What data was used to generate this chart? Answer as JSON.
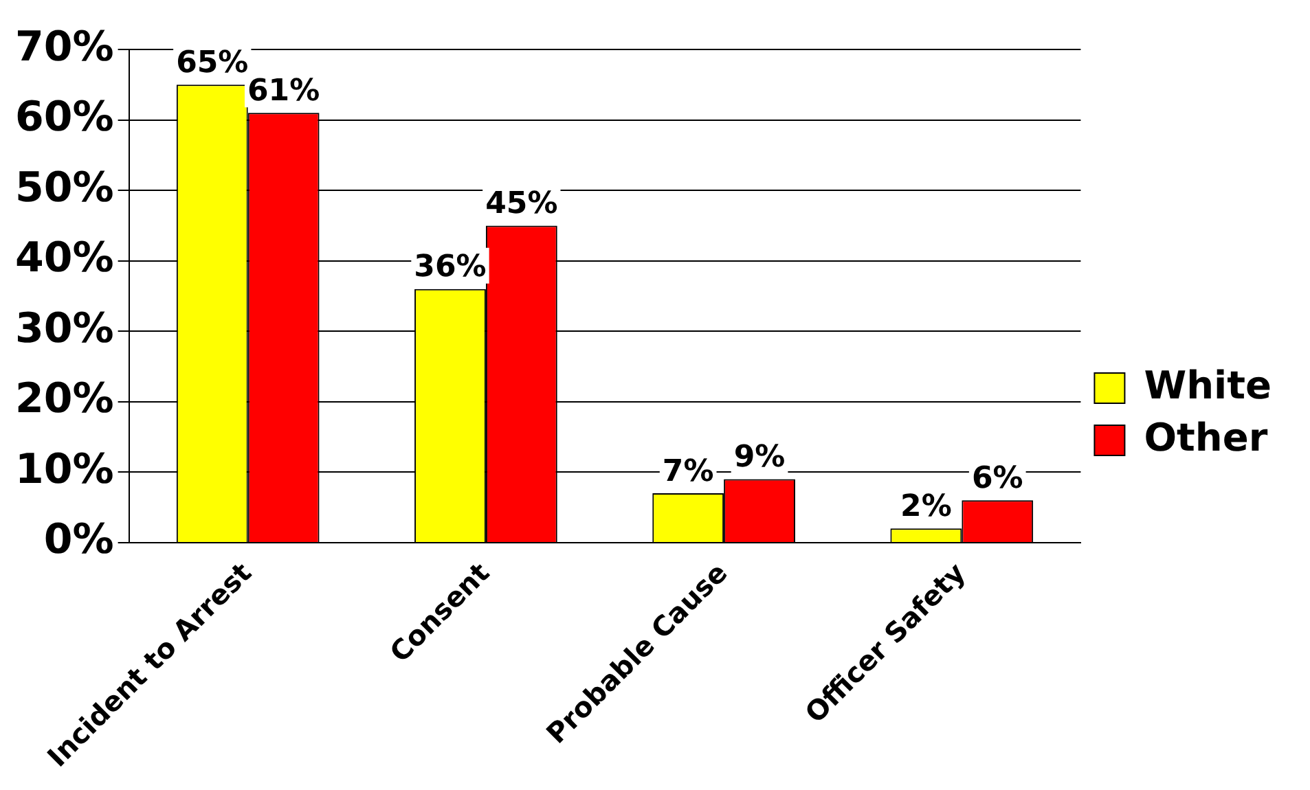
{
  "chart_data": {
    "type": "bar",
    "categories": [
      "Incident to Arrest",
      "Consent",
      "Probable Cause",
      "Officer Safety"
    ],
    "series": [
      {
        "name": "White",
        "color": "#ffff00",
        "values": [
          65,
          36,
          7,
          2
        ],
        "value_labels": [
          "65%",
          "36%",
          "7%",
          "2%"
        ]
      },
      {
        "name": "Other",
        "color": "#ff0000",
        "values": [
          61,
          45,
          9,
          6
        ],
        "value_labels": [
          "61%",
          "45%",
          "9%",
          "6%"
        ]
      }
    ],
    "ylim": [
      0,
      70
    ],
    "yticks": [
      {
        "value": 0,
        "label": "0%"
      },
      {
        "value": 10,
        "label": "10%"
      },
      {
        "value": 20,
        "label": "20%"
      },
      {
        "value": 30,
        "label": "30%"
      },
      {
        "value": 40,
        "label": "40%"
      },
      {
        "value": 50,
        "label": "50%"
      },
      {
        "value": 60,
        "label": "60%"
      },
      {
        "value": 70,
        "label": "70%"
      }
    ],
    "grid": "y",
    "legend": "right"
  }
}
